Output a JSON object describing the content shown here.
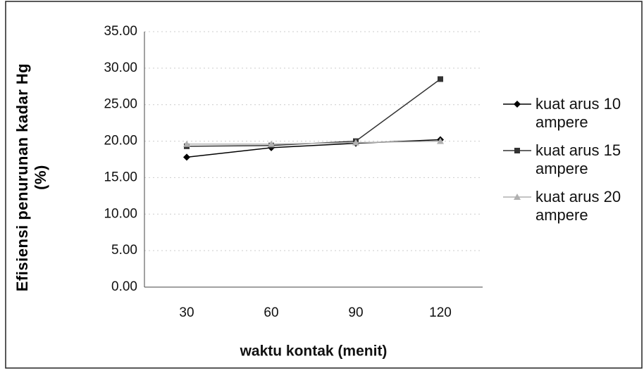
{
  "chart_data": {
    "type": "line",
    "y_label": "Efisiensi penurunan kadar Hg (%)",
    "x_label": "waktu kontak (menit)",
    "categories": [
      "30",
      "60",
      "90",
      "120"
    ],
    "series": [
      {
        "name": "kuat arus 10 ampere",
        "color": "#000000",
        "marker": "diamond",
        "values": [
          17.8,
          19.1,
          19.7,
          20.2
        ]
      },
      {
        "name": "kuat arus 15 ampere",
        "color": "#333333",
        "marker": "square",
        "values": [
          19.3,
          19.4,
          20.0,
          28.5
        ]
      },
      {
        "name": "kuat arus 20 ampere",
        "color": "#b0b0b0",
        "marker": "triangle",
        "values": [
          19.6,
          19.6,
          19.8,
          20.0
        ]
      }
    ],
    "ylim": [
      0,
      35
    ],
    "yticks": [
      {
        "value": 0,
        "label": "0.00"
      },
      {
        "value": 5,
        "label": "5.00"
      },
      {
        "value": 10,
        "label": "10.00"
      },
      {
        "value": 15,
        "label": "15.00"
      },
      {
        "value": 20,
        "label": "20.00"
      },
      {
        "value": 25,
        "label": "25.00"
      },
      {
        "value": 30,
        "label": "30.00"
      },
      {
        "value": 35,
        "label": "35.00"
      }
    ],
    "grid": true,
    "legend": "right"
  }
}
